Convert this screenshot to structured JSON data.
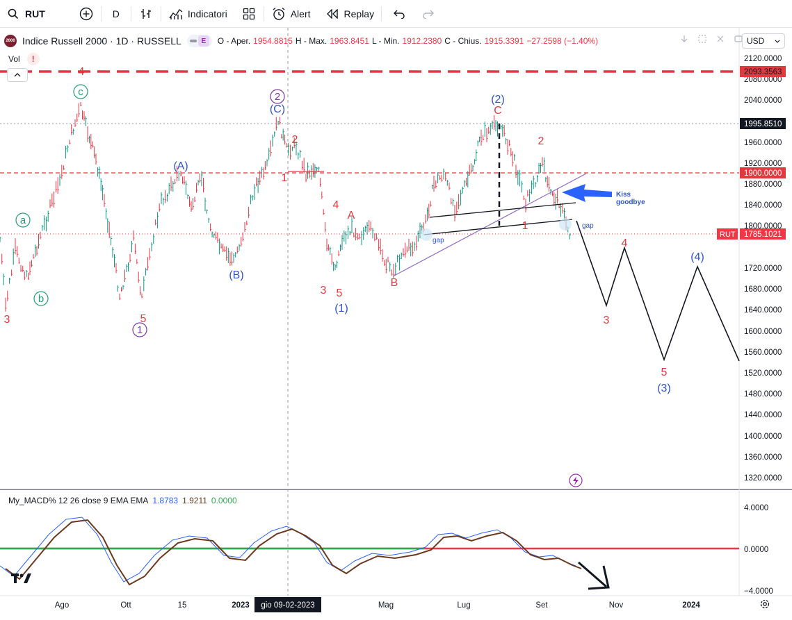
{
  "toolbar": {
    "symbol": "RUT",
    "interval": "D",
    "indicators_label": "Indicatori",
    "alert_label": "Alert",
    "replay_label": "Replay",
    "icons": [
      "search-icon",
      "add-symbol-icon",
      "bar-style-icon",
      "indicators-icon",
      "layouts-icon",
      "alert-icon",
      "replay-icon",
      "undo-icon",
      "redo-icon"
    ]
  },
  "legend": {
    "logo_text": "2000",
    "title": "Indice Russell 2000 · 1D · RUSSELL",
    "e_badge": "E",
    "open_label": "O - Aper.",
    "open_value": "1954.8815",
    "high_label": "H - Max.",
    "high_value": "1963.8451",
    "low_label": "L - Min.",
    "low_value": "1912.2380",
    "close_label": "C - Chius.",
    "close_value": "1915.3391",
    "change": "−27.2598 (−1.40%)",
    "vol_label": "Vol",
    "warn": "!"
  },
  "currency": "USD",
  "price_axis": {
    "ticks": [
      "2120.0000",
      "2080.0000",
      "2040.0000",
      "1960.0000",
      "1920.0000",
      "1880.0000",
      "1840.0000",
      "1800.0000",
      "1720.0000",
      "1680.0000",
      "1640.0000",
      "1600.0000",
      "1560.0000",
      "1520.0000",
      "1480.0000",
      "1440.0000",
      "1400.0000",
      "1360.0000",
      "1320.0000"
    ],
    "labels": {
      "level_2093": "2093.3563",
      "level_1995": "1995.8510",
      "level_1900": "1900.0000",
      "rut_tag": "RUT",
      "rut_price": "1785.1021"
    }
  },
  "macd_axis": [
    "4.0000",
    "0.0000",
    "−4.0000"
  ],
  "time_axis": {
    "labels": [
      "Ago",
      "Ott",
      "15",
      "2023",
      "Mag",
      "Lug",
      "Set",
      "Nov",
      "2024"
    ],
    "crosshair_label": "gio 09-02-2023"
  },
  "macd_legend": {
    "name": "My_MACD% 12 26 close 9 EMA EMA",
    "v1": "1.8783",
    "v2": "1.9211",
    "v3": "0.0000"
  },
  "annotations": {
    "red": [
      "4",
      "3",
      "5",
      "2",
      "1",
      "4",
      "A",
      "3",
      "5",
      "B",
      "C",
      "2",
      "1",
      "4",
      "3",
      "5"
    ],
    "green": [
      "a",
      "b",
      "c"
    ],
    "purple": [
      "1",
      "2"
    ],
    "blue": [
      "(A)",
      "(B)",
      "(C)",
      "(1)",
      "(2)",
      "(3)",
      "(4)"
    ],
    "kiss_goodbye_line1": "Kiss",
    "kiss_goodbye_line2": "goodbye",
    "gap1": "gap",
    "gap2": "gap"
  },
  "colors": {
    "up": "#089981",
    "down": "#f23645",
    "red_label": "#e03a3e",
    "blue_label": "#2e54c7",
    "green_label": "#1f9e75",
    "purple_label": "#7a3aa0",
    "macd_fast": "#2962ff",
    "macd_slow": "#6b3a1e"
  }
}
